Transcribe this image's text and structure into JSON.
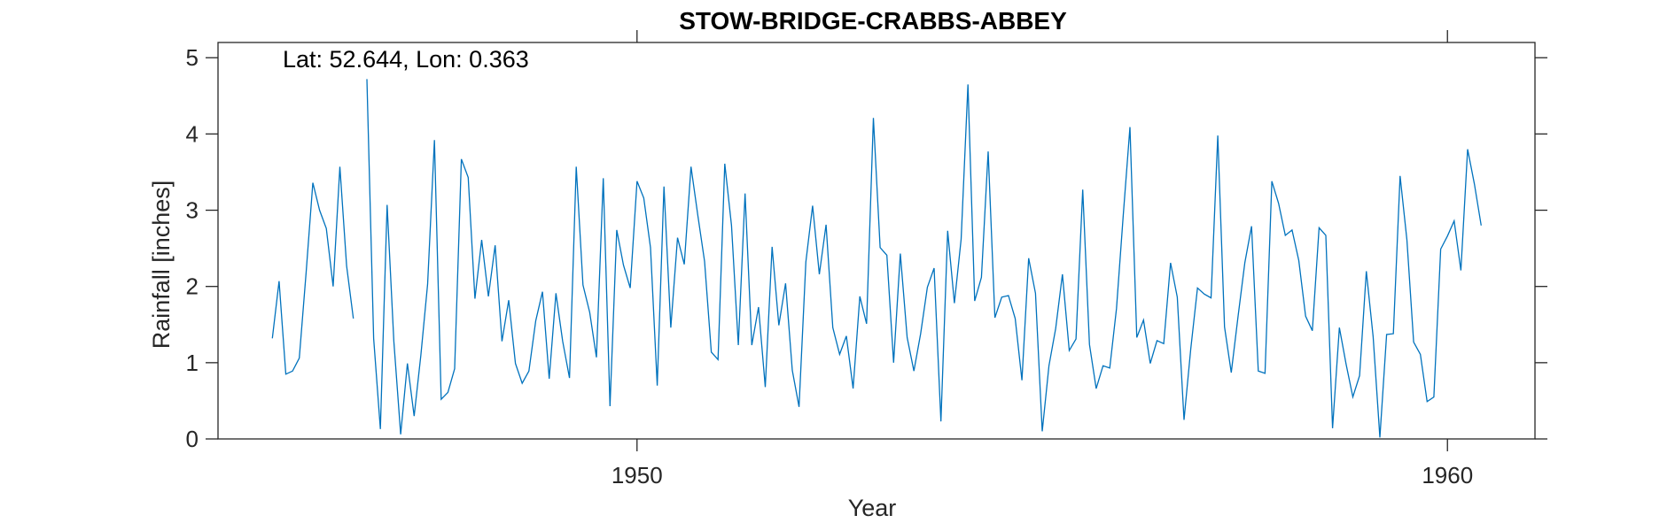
{
  "chart_data": {
    "type": "line",
    "title": "STOW-BRIDGE-CRABBS-ABBEY",
    "xlabel": "Year",
    "ylabel": "Rainfall [inches]",
    "annotation": "Lat: 52.644, Lon: 0.363",
    "xlim": [
      1944.83,
      1961.08
    ],
    "ylim": [
      0,
      5.2
    ],
    "xticks": [
      1950,
      1960
    ],
    "xtick_labels": [
      "1950",
      "1960"
    ],
    "yticks": [
      0,
      1,
      2,
      3,
      4,
      5
    ],
    "ytick_labels": [
      "0",
      "1",
      "2",
      "3",
      "4",
      "5"
    ],
    "grid": false,
    "series": [
      {
        "color": "#0072BD",
        "x_start": 1945.5,
        "x_step": 0.08333,
        "values": [
          1.32,
          2.07,
          0.85,
          0.89,
          1.06,
          2.18,
          3.36,
          3.0,
          2.76,
          2.0,
          3.57,
          2.27,
          1.58,
          null,
          4.72,
          1.32,
          0.13,
          3.07,
          1.28,
          0.06,
          0.99,
          0.3,
          1.1,
          2.03,
          3.92,
          0.52,
          0.61,
          0.92,
          3.67,
          3.43,
          1.84,
          2.61,
          1.87,
          2.54,
          1.28,
          1.82,
          0.99,
          0.73,
          0.89,
          1.55,
          1.93,
          0.79,
          1.91,
          1.28,
          0.8,
          3.57,
          2.02,
          1.66,
          1.07,
          3.42,
          0.43,
          2.74,
          2.28,
          1.98,
          3.38,
          3.16,
          2.51,
          0.7,
          3.31,
          1.46,
          2.64,
          2.29,
          3.57,
          2.94,
          2.33,
          1.14,
          1.04,
          3.61,
          2.8,
          1.23,
          3.22,
          1.23,
          1.73,
          0.68,
          2.52,
          1.49,
          2.04,
          0.9,
          0.42,
          2.32,
          3.06,
          2.16,
          2.81,
          1.46,
          1.11,
          1.35,
          0.66,
          1.87,
          1.51,
          4.21,
          2.51,
          2.41,
          1.0,
          2.43,
          1.33,
          0.89,
          1.38,
          1.99,
          2.24,
          0.23,
          2.73,
          1.78,
          2.62,
          4.65,
          1.81,
          2.12,
          3.77,
          1.59,
          1.86,
          1.88,
          1.58,
          0.77,
          2.37,
          1.91,
          0.1,
          0.96,
          1.45,
          2.16,
          1.16,
          1.31,
          3.27,
          1.24,
          0.66,
          0.96,
          0.93,
          1.71,
          2.93,
          4.09,
          1.33,
          1.56,
          0.99,
          1.29,
          1.25,
          2.31,
          1.86,
          0.25,
          1.18,
          1.98,
          1.9,
          1.85,
          3.98,
          1.47,
          0.87,
          1.61,
          2.31,
          2.79,
          0.89,
          0.86,
          3.38,
          3.09,
          2.67,
          2.74,
          2.34,
          1.61,
          1.42,
          2.77,
          2.67,
          0.14,
          1.46,
          0.98,
          0.55,
          0.83,
          2.2,
          1.34,
          0.02,
          1.37,
          1.38,
          3.45,
          2.61,
          1.27,
          1.11,
          0.49,
          0.55,
          2.49,
          2.66,
          2.86,
          2.21,
          3.8,
          3.34,
          2.8
        ]
      }
    ]
  }
}
